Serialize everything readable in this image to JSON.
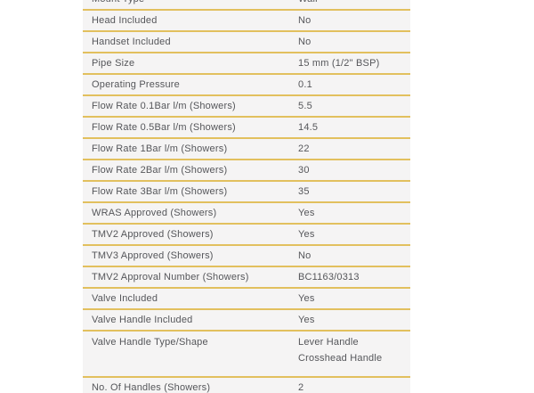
{
  "page": {
    "background_color": "#ffffff"
  },
  "spec_table": {
    "panel_background_color": "#f5f4f4",
    "divider_color": "#e2c05e",
    "text_color": "#55565a",
    "columns": [
      "attribute",
      "value"
    ],
    "rows": [
      {
        "label": "Mount Type",
        "values": [
          "Wall"
        ]
      },
      {
        "label": "Head Included",
        "values": [
          "No"
        ]
      },
      {
        "label": "Handset Included",
        "values": [
          "No"
        ]
      },
      {
        "label": "Pipe Size",
        "values": [
          "15 mm (1/2\" BSP)"
        ]
      },
      {
        "label": "Operating Pressure",
        "values": [
          "0.1"
        ]
      },
      {
        "label": "Flow Rate 0.1Bar l/m (Showers)",
        "values": [
          "5.5"
        ]
      },
      {
        "label": "Flow Rate 0.5Bar l/m (Showers)",
        "values": [
          "14.5"
        ]
      },
      {
        "label": "Flow Rate 1Bar l/m (Showers)",
        "values": [
          "22"
        ]
      },
      {
        "label": "Flow Rate 2Bar l/m (Showers)",
        "values": [
          "30"
        ]
      },
      {
        "label": "Flow Rate 3Bar l/m (Showers)",
        "values": [
          "35"
        ]
      },
      {
        "label": "WRAS Approved (Showers)",
        "values": [
          "Yes"
        ]
      },
      {
        "label": "TMV2 Approved (Showers)",
        "values": [
          "Yes"
        ]
      },
      {
        "label": "TMV3 Approved (Showers)",
        "values": [
          "No"
        ]
      },
      {
        "label": "TMV2 Approval Number (Showers)",
        "values": [
          "BC1163/0313"
        ]
      },
      {
        "label": "Valve Included",
        "values": [
          "Yes"
        ]
      },
      {
        "label": "Valve Handle Included",
        "values": [
          "Yes"
        ]
      },
      {
        "label": "Valve Handle Type/Shape",
        "values": [
          "Lever Handle",
          "Crosshead Handle"
        ]
      },
      {
        "label": "No. Of Handles (Showers)",
        "values": [
          "2"
        ]
      }
    ]
  }
}
